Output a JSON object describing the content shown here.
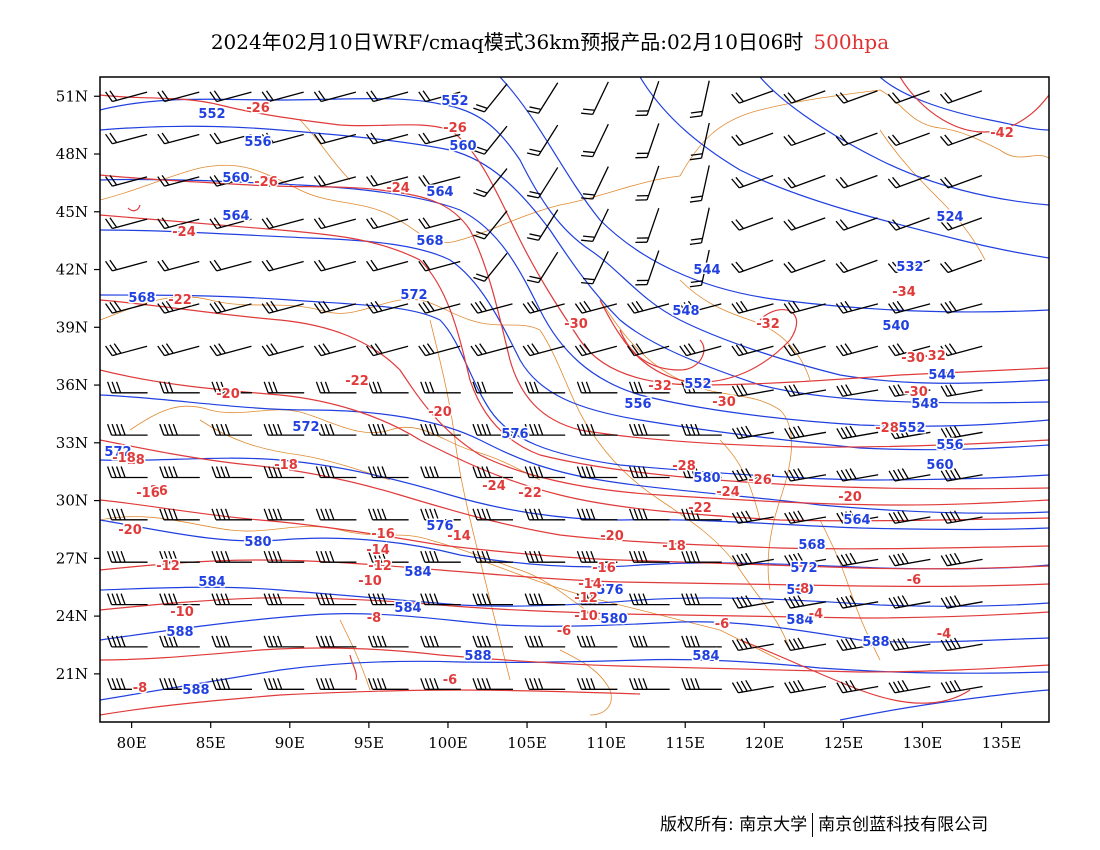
{
  "title": {
    "main": "2024年02月10日WRF/cmaq模式36km预报产品:02月10日06时",
    "level": "500hpa"
  },
  "axes": {
    "lon_labels": [
      "80E",
      "85E",
      "90E",
      "95E",
      "100E",
      "105E",
      "110E",
      "115E",
      "120E",
      "125E",
      "130E",
      "135E"
    ],
    "lat_labels": [
      "51N",
      "48N",
      "45N",
      "42N",
      "39N",
      "36N",
      "33N",
      "30N",
      "27N",
      "24N",
      "21N"
    ]
  },
  "colors": {
    "height_contour": "#2040e0",
    "temperature_contour": "#e03a3a",
    "boundary": "#e08a30",
    "wind_barb": "#000000"
  },
  "height_labels": [
    "552",
    "552",
    "556",
    "560",
    "560",
    "564",
    "564",
    "568",
    "568",
    "572",
    "572",
    "576",
    "580",
    "584",
    "584",
    "584",
    "588",
    "588",
    "588",
    "544",
    "548",
    "552",
    "556",
    "540",
    "532",
    "524",
    "544",
    "548",
    "552",
    "556",
    "560",
    "564",
    "568",
    "572",
    "576",
    "580",
    "584",
    "588",
    "584",
    "580",
    "580",
    "576",
    "572"
  ],
  "temperature_labels": [
    "-26",
    "-26",
    "-26",
    "-24",
    "-24",
    "-22",
    "-22",
    "-20",
    "-20",
    "-18",
    "-18",
    "-16",
    "-16",
    "-14",
    "-14",
    "-12",
    "-12",
    "-10",
    "-10",
    "-8",
    "-8",
    "-6",
    "-6",
    "-24",
    "-22",
    "-24",
    "-30",
    "-32",
    "-32",
    "-30",
    "-34",
    "-30",
    "-32",
    "-28",
    "-28",
    "-26",
    "-24",
    "-22",
    "-20",
    "-20",
    "-18",
    "-16",
    "-14",
    "-12",
    "-10",
    "-8",
    "-6",
    "-4",
    "-4",
    "-6",
    "-20",
    "-18",
    "-16",
    "-42",
    "-30"
  ],
  "copyright": {
    "left": "版权所有: 南京大学",
    "right": "南京创蓝科技有限公司"
  }
}
